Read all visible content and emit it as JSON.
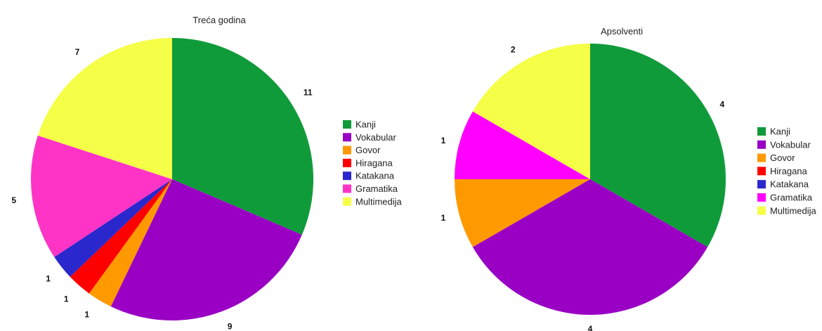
{
  "chart_data": [
    {
      "type": "pie",
      "title": "Treća godina",
      "categories": [
        "Kanji",
        "Vokabular",
        "Govor",
        "Hiragana",
        "Katakana",
        "Gramatika",
        "Multimedija"
      ],
      "values": [
        11,
        9,
        1,
        1,
        1,
        5,
        7
      ],
      "colors": [
        "#109b3a",
        "#9900c4",
        "#ff9900",
        "#ff0000",
        "#2a27cc",
        "#ff33c6",
        "#f6ff48"
      ],
      "legend_position": "right",
      "start_angle": "top",
      "direction": "clockwise"
    },
    {
      "type": "pie",
      "title": "Apsolventi",
      "categories": [
        "Kanji",
        "Vokabular",
        "Govor",
        "Hiragana",
        "Katakana",
        "Gramatika",
        "Multimedija"
      ],
      "values": [
        4,
        4,
        1,
        0,
        0,
        1,
        2
      ],
      "colors": [
        "#109b3a",
        "#9900c4",
        "#ff9900",
        "#ff0000",
        "#2a27cc",
        "#ff00ff",
        "#f6ff48"
      ],
      "legend_position": "right",
      "start_angle": "top",
      "direction": "clockwise"
    }
  ]
}
